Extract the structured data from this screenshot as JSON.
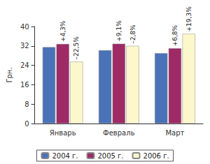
{
  "chart_data": {
    "type": "bar",
    "y_label": "Грн.",
    "categories": [
      "Январь",
      "Февраль",
      "Март"
    ],
    "series": [
      {
        "name": "2004 г.",
        "color": "#4a72b8",
        "values": [
          31.5,
          30.2,
          29.0
        ]
      },
      {
        "name": "2005 г.",
        "color": "#9e2a66",
        "values": [
          32.8,
          32.9,
          31.0
        ],
        "annotations": [
          "+4,3%",
          "+9,1%",
          "+6,8%"
        ]
      },
      {
        "name": "2006 г.",
        "color": "#fdf8cc",
        "values": [
          25.5,
          32.0,
          37.0
        ],
        "annotations": [
          "–22,5%",
          "–2,8%",
          "+19,3%"
        ]
      }
    ],
    "ylim": [
      0,
      40
    ],
    "yticks": [
      0,
      8,
      16,
      24,
      32,
      40
    ],
    "grid": false,
    "legend": "bottom"
  }
}
